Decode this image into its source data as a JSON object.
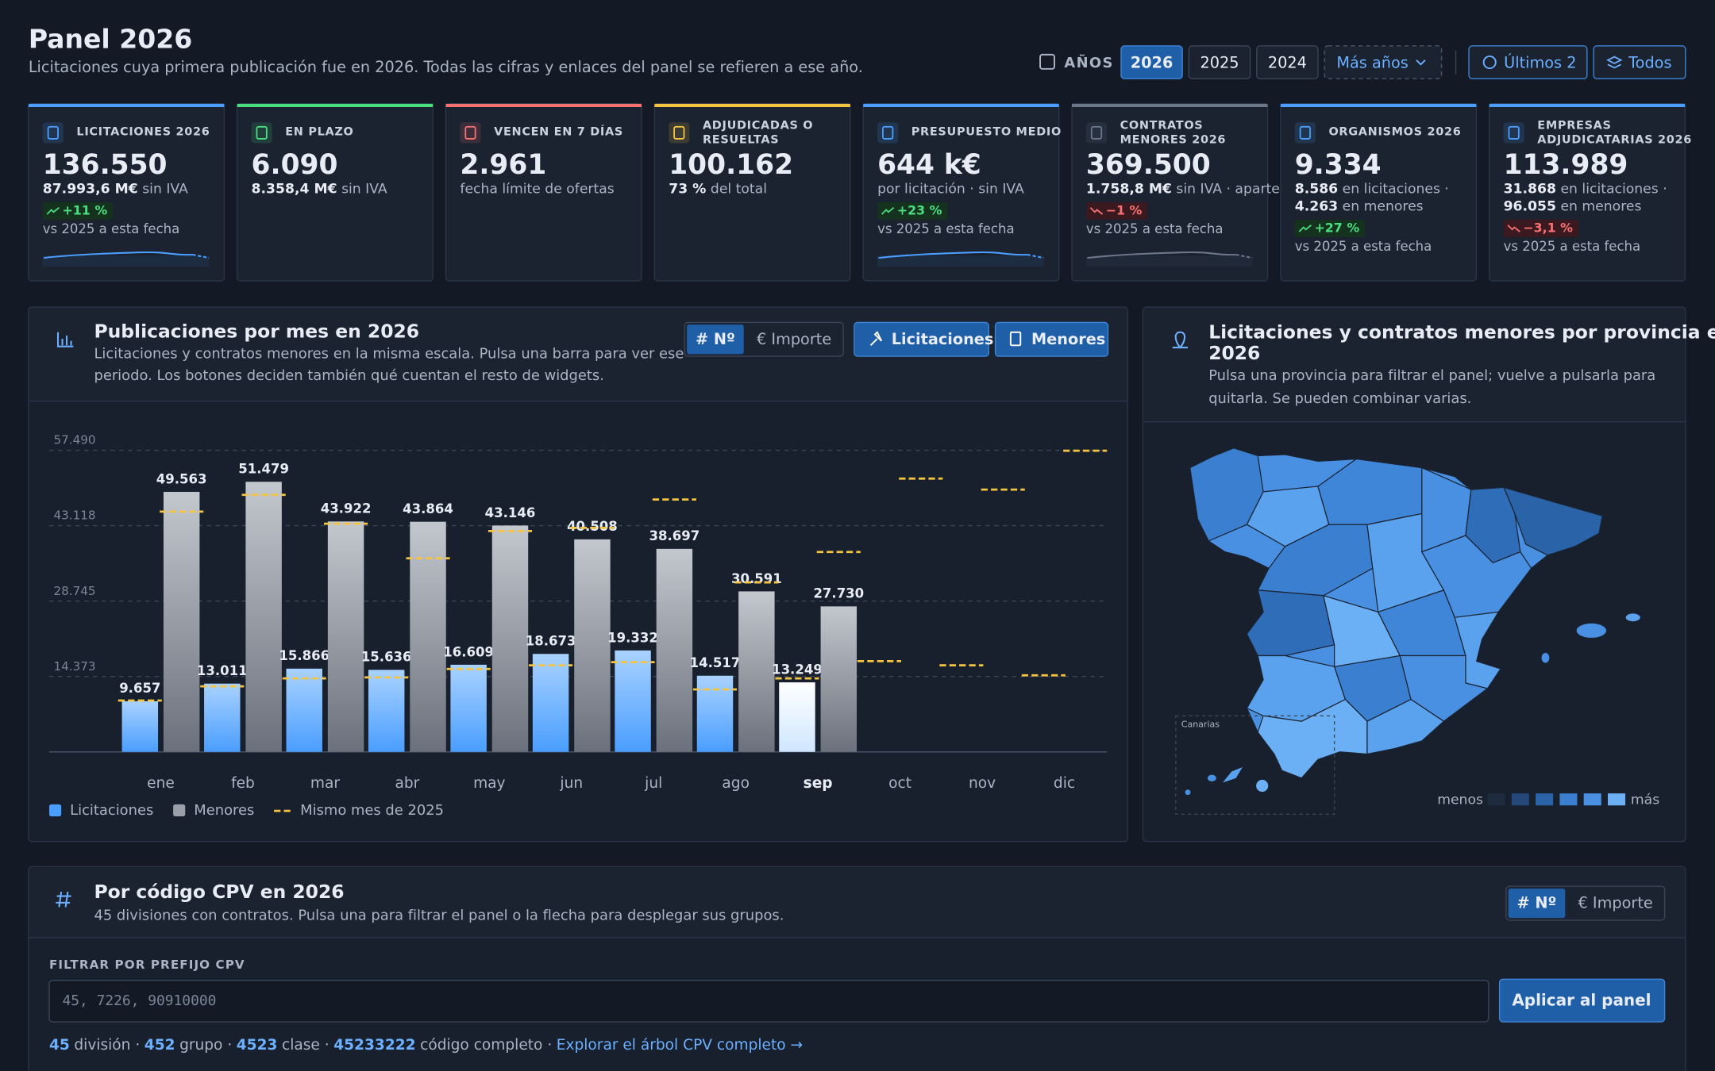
{
  "header": {
    "title": "Panel 2026",
    "subtitle": "Licitaciones cuya primera publicación fue en 2026. Todas las cifras y enlaces del panel se refieren a ese año."
  },
  "year_controls": {
    "label": "AÑOS",
    "years": [
      "2026",
      "2025",
      "2024"
    ],
    "more": "Más años",
    "last": "Últimos 2",
    "all": "Todos"
  },
  "kpis": [
    {
      "color": "#4a9eff",
      "label_lines": [
        "LICITACIONES 2026"
      ],
      "value": "136.550",
      "lines": [
        {
          "strong": "87.993,6 M€",
          "text": "sin IVA"
        }
      ],
      "delta": {
        "text": "+11 %",
        "trend": "up"
      },
      "note": "vs 2025 a esta fecha",
      "sparkline": true
    },
    {
      "color": "#4ade80",
      "label_lines": [
        "EN PLAZO"
      ],
      "value": "6.090",
      "lines": [
        {
          "strong": "8.358,4 M€",
          "text": "sin IVA"
        }
      ]
    },
    {
      "color": "#f87171",
      "label_lines": [
        "VENCEN EN 7 DÍAS"
      ],
      "value": "2.961",
      "lines": [
        {
          "text": "fecha límite de ofertas"
        }
      ]
    },
    {
      "color": "#f5c542",
      "label_lines": [
        "ADJUDICADAS O",
        "RESUELTAS"
      ],
      "value": "100.162",
      "lines": [
        {
          "strong": "73 %",
          "text": "del total"
        }
      ]
    },
    {
      "color": "#4a9eff",
      "label_lines": [
        "PRESUPUESTO MEDIO"
      ],
      "value": "644 k€",
      "lines": [
        {
          "text": "por licitación · sin IVA"
        }
      ],
      "delta": {
        "text": "+23 %",
        "trend": "up"
      },
      "note": "vs 2025 a esta fecha",
      "sparkline": true
    },
    {
      "color": "#6b7688",
      "label_lines": [
        "CONTRATOS",
        "MENORES 2026"
      ],
      "value": "369.500",
      "lines": [
        {
          "strong": "1.758,8 M€",
          "text": "sin IVA · aparte"
        }
      ],
      "delta": {
        "text": "−1 %",
        "trend": "down"
      },
      "note": "vs 2025 a esta fecha",
      "sparkline": true
    },
    {
      "color": "#4a9eff",
      "label_lines": [
        "ORGANISMOS 2026"
      ],
      "value": "9.334",
      "lines": [
        {
          "strong": "8.586",
          "text": "en licitaciones ·"
        },
        {
          "strong": "4.263",
          "text": "en menores"
        }
      ],
      "delta": {
        "text": "+27 %",
        "trend": "up"
      },
      "note": "vs 2025 a esta fecha"
    },
    {
      "color": "#4a9eff",
      "label_lines": [
        "EMPRESAS",
        "ADJUDICATARIAS 2026"
      ],
      "value": "113.989",
      "lines": [
        {
          "strong": "31.868",
          "text": "en licitaciones ·"
        },
        {
          "strong": "96.055",
          "text": "en menores"
        }
      ],
      "delta": {
        "text": "−3,1 %",
        "trend": "down"
      },
      "note": "vs 2025 a esta fecha"
    }
  ],
  "chart_data": {
    "type": "bar",
    "title": "Publicaciones por mes en 2026",
    "subtitle_lines": [
      "Licitaciones y contratos menores en la misma escala. Pulsa una barra para ver ese",
      "periodo. Los botones deciden también qué cuentan el resto de widgets."
    ],
    "metric_toggle": [
      "# Nº",
      "€ Importe"
    ],
    "filters": [
      "Licitaciones",
      "Menores"
    ],
    "categories": [
      "ene",
      "feb",
      "mar",
      "abr",
      "may",
      "jun",
      "jul",
      "ago",
      "sep",
      "oct",
      "nov",
      "dic"
    ],
    "selected_index": 8,
    "series": [
      {
        "name": "Licitaciones",
        "color": "#4a9eff",
        "values": [
          9657,
          13011,
          15866,
          15636,
          16609,
          18673,
          19332,
          14517,
          13249,
          null,
          null,
          null
        ],
        "value_labels": [
          "9.657",
          "13.011",
          "15.866",
          "15.636",
          "16.609",
          "18.673",
          "19.332",
          "14.517",
          "13.249",
          null,
          null,
          null
        ],
        "previous": [
          9800,
          12500,
          14000,
          14200,
          15800,
          16500,
          17100,
          11900,
          14000,
          17300,
          16500,
          14600
        ]
      },
      {
        "name": "Menores",
        "color": "#9aa0a9",
        "values": [
          49563,
          51479,
          43922,
          43864,
          43146,
          40508,
          38697,
          30591,
          27730,
          null,
          null,
          null
        ],
        "value_labels": [
          "49.563",
          "51.479",
          "43.922",
          "43.864",
          "43.146",
          "40.508",
          "38.697",
          "30.591",
          "27.730",
          null,
          null,
          null
        ],
        "previous": [
          45800,
          49000,
          43500,
          36900,
          42100,
          42700,
          48100,
          32300,
          38100,
          52100,
          50000,
          57400
        ]
      }
    ],
    "previous_label": "Mismo mes de 2025",
    "previous_color": "#f5c542",
    "ylim": [
      0,
      57490
    ],
    "yticks": [
      {
        "value": 14373,
        "label": "14.373"
      },
      {
        "value": 28745,
        "label": "28.745"
      },
      {
        "value": 43118,
        "label": "43.118"
      },
      {
        "value": 57490,
        "label": "57.490"
      }
    ],
    "grid": true
  },
  "map_panel": {
    "title_lines": [
      "Licitaciones y contratos menores por provincia en",
      "2026"
    ],
    "subtitle_lines": [
      "Pulsa una provincia para filtrar el panel; vuelve a pulsarla para",
      "quitarla. Se pueden combinar varias."
    ],
    "inset_label": "Canarias",
    "legend_low": "menos",
    "legend_high": "más"
  },
  "cpv_panel": {
    "title": "Por código CPV en 2026",
    "subtitle": "45 divisiones con contratos. Pulsa una para filtrar el panel o la flecha para desplegar sus grupos.",
    "metric_toggle": [
      "# Nº",
      "€ Importe"
    ],
    "filter_label": "FILTRAR POR PREFIJO CPV",
    "placeholder": "45, 7226, 90910000",
    "button": "Aplicar al panel",
    "examples": [
      {
        "strong": "45",
        "text": "división ·"
      },
      {
        "strong": "452",
        "text": "grupo ·"
      },
      {
        "strong": "4523",
        "text": "clase ·"
      },
      {
        "strong": "45233222",
        "text": "código completo ·"
      }
    ],
    "link": "Explorar el árbol CPV completo →"
  }
}
